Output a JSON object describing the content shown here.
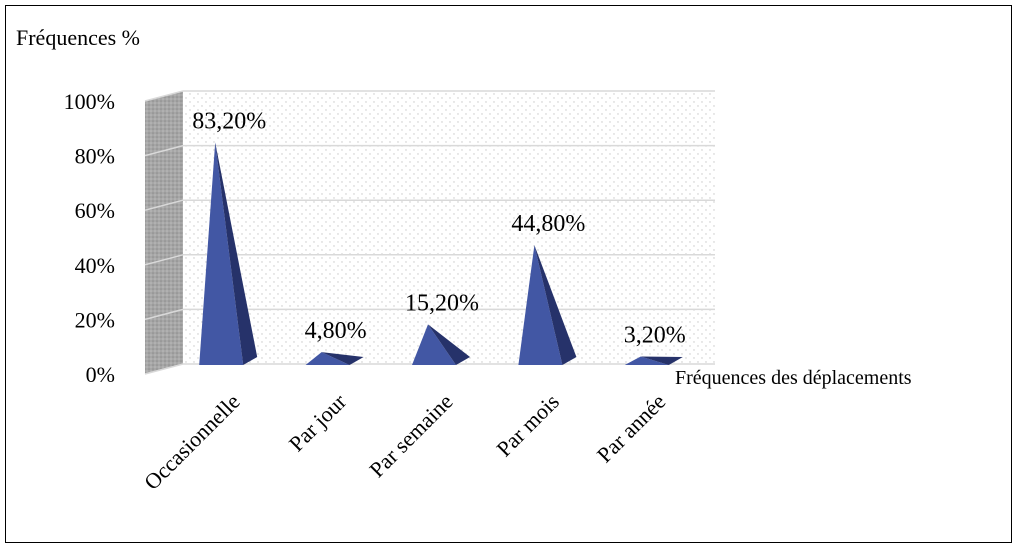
{
  "chart_data": {
    "type": "bar",
    "mark_shape": "3d-pyramid",
    "title": "",
    "ylabel": "Fréquences %",
    "xlabel": "Fréquences des déplacements",
    "categories": [
      "Occasionnelle",
      "Par jour",
      "Par semaine",
      "Par mois",
      "Par année"
    ],
    "values": [
      83.2,
      4.8,
      15.2,
      44.8,
      3.2
    ],
    "data_labels": [
      "83,20%",
      "4,80%",
      "15,20%",
      "44,80%",
      "3,20%"
    ],
    "yticks": [
      "0%",
      "20%",
      "40%",
      "60%",
      "80%",
      "100%"
    ],
    "ylim": [
      0,
      100
    ],
    "grid": true,
    "legend": "none",
    "colors": {
      "bar_face": "#4257a4",
      "bar_side": "#26326a",
      "side_wall": "#a6a6a6",
      "back_wall_dots": "#c7c7c7",
      "grid": "#d9d9d9"
    }
  }
}
